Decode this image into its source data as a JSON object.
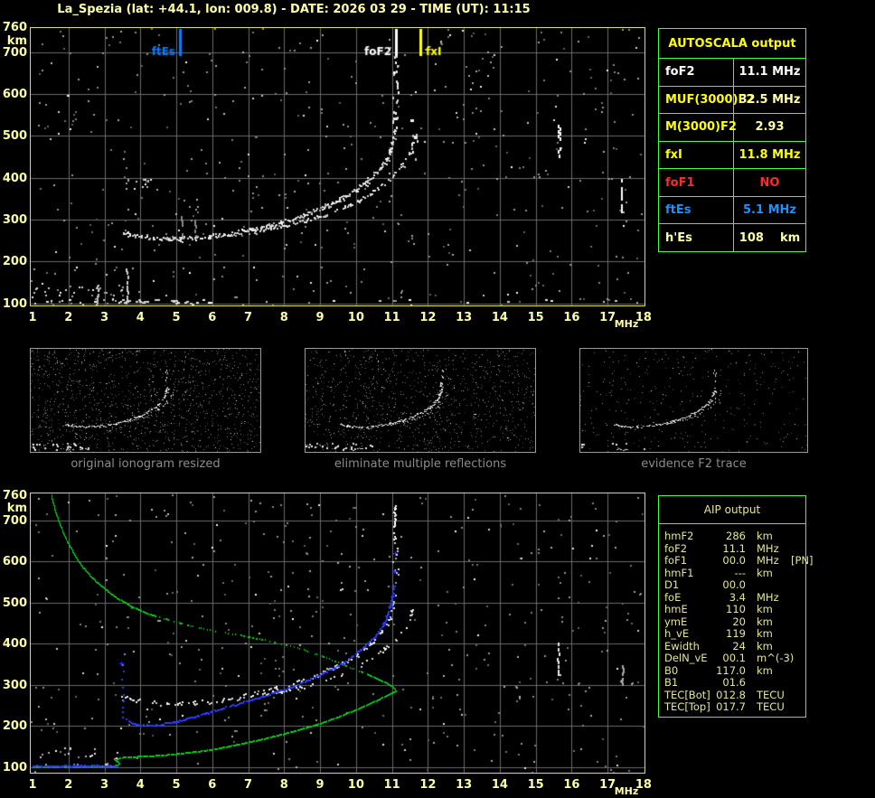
{
  "window": {
    "title": "La_Spezia (lat: +44.1, lon: 009.8) - DATE: 2026 03 29 - TIME (UT): 11:15"
  },
  "colors": {
    "background": "#000000",
    "plot_border": "#e6e600",
    "grid": "#6a6a6a",
    "axis_label": "#ffffa6",
    "table_border": "#40ff40",
    "caption_gray": "#8c8c8c",
    "white": "#ffffff",
    "pale_yellow": "#ffffa8",
    "yellow": "#ffff00",
    "red": "#ff2a2a",
    "marker_blue": "#0a7cff",
    "blue_trace": "#2b3cff",
    "green_profile": "#00d414",
    "aip_text": "#e6e696"
  },
  "axes": {
    "x_ticks": [
      1,
      2,
      3,
      4,
      5,
      6,
      7,
      8,
      9,
      10,
      11,
      12,
      13,
      14,
      15,
      16,
      17,
      18
    ],
    "x_unit": "MHz",
    "y_ticks": [
      760,
      700,
      600,
      500,
      400,
      300,
      200,
      100
    ],
    "y_unit": "km"
  },
  "top_plot": {
    "markers": [
      {
        "label": "ftEs",
        "freq": 5.1,
        "color": "#0a7cff",
        "side": "left"
      },
      {
        "label": "foF2",
        "freq": 11.1,
        "color": "#ffffff",
        "side": "left"
      },
      {
        "label": "fxI",
        "freq": 11.8,
        "color": "#ffff00",
        "side": "right"
      }
    ]
  },
  "thumbnails": [
    {
      "caption": "original ionogram resized"
    },
    {
      "caption": "eliminate multiple reflections"
    },
    {
      "caption": "evidence F2 trace"
    }
  ],
  "autoscala": {
    "title": "AUTOSCALA output",
    "rows": [
      {
        "label": "foF2",
        "value": "11.1 MHz",
        "label_color": "white",
        "value_color": "white"
      },
      {
        "label": "MUF(3000)F2",
        "value": "32.5 MHz",
        "label_color": "yellow",
        "value_color": "pale"
      },
      {
        "label": "M(3000)F2",
        "value": "2.93",
        "label_color": "yellow",
        "value_color": "pale"
      },
      {
        "label": "fxI",
        "value": "11.8 MHz",
        "label_color": "yellow",
        "value_color": "yellow"
      },
      {
        "label": "foF1",
        "value": "NO",
        "label_color": "red",
        "value_color": "red"
      },
      {
        "label": "ftEs",
        "value": "5.1 MHz",
        "label_color": "blue",
        "value_color": "blue"
      },
      {
        "label": "h'Es",
        "value": "108    km",
        "label_color": "pale",
        "value_color": "pale"
      }
    ]
  },
  "aip": {
    "title": "AIP output",
    "rows": [
      {
        "label": "hmF2",
        "value": "286",
        "unit": "km",
        "note": ""
      },
      {
        "label": "foF2",
        "value": "11.1",
        "unit": "MHz",
        "note": ""
      },
      {
        "label": "foF1",
        "value": "00.0",
        "unit": "MHz",
        "note": "[PN]"
      },
      {
        "label": "hmF1",
        "value": "---",
        "unit": "km",
        "note": ""
      },
      {
        "label": "D1",
        "value": "00.0",
        "unit": "",
        "note": ""
      },
      {
        "label": "foE",
        "value": "3.4",
        "unit": "MHz",
        "note": ""
      },
      {
        "label": "hmE",
        "value": "110",
        "unit": "km",
        "note": ""
      },
      {
        "label": "ymE",
        "value": "20",
        "unit": "km",
        "note": ""
      },
      {
        "label": "h_vE",
        "value": "119",
        "unit": "km",
        "note": ""
      },
      {
        "label": "Ewidth",
        "value": "24",
        "unit": "km",
        "note": ""
      },
      {
        "label": "DelN_vE",
        "value": "00.1",
        "unit": "m^(-3)",
        "note": ""
      },
      {
        "label": "B0",
        "value": "117.0",
        "unit": "km",
        "note": ""
      },
      {
        "label": "B1",
        "value": "01.6",
        "unit": "",
        "note": ""
      },
      {
        "label": "TEC[Bot]",
        "value": "012.8",
        "unit": "TECU",
        "note": ""
      },
      {
        "label": "TEC[Top]",
        "value": "017.7",
        "unit": "TECU",
        "note": ""
      }
    ]
  },
  "chart_data": {
    "type": "scatter",
    "title": "ionogram: virtual height vs frequency",
    "xlabel": "MHz",
    "ylabel": "km",
    "x_range": [
      1,
      18
    ],
    "y_range": [
      100,
      760
    ],
    "grid": "on",
    "top_ionogram": {
      "o_trace": [
        [
          3.45,
          272
        ],
        [
          3.7,
          266
        ],
        [
          4.0,
          261
        ],
        [
          4.35,
          258
        ],
        [
          4.7,
          256
        ],
        [
          5.1,
          256
        ],
        [
          5.5,
          258
        ],
        [
          5.9,
          261
        ],
        [
          6.3,
          265
        ],
        [
          6.7,
          271
        ],
        [
          7.1,
          278
        ],
        [
          7.5,
          286
        ],
        [
          7.9,
          295
        ],
        [
          8.3,
          306
        ],
        [
          8.7,
          318
        ],
        [
          9.1,
          332
        ],
        [
          9.5,
          349
        ],
        [
          9.9,
          369
        ],
        [
          10.2,
          388
        ],
        [
          10.5,
          410
        ],
        [
          10.7,
          428
        ],
        [
          10.85,
          448
        ],
        [
          10.95,
          468
        ],
        [
          11.02,
          492
        ],
        [
          11.07,
          518
        ]
      ],
      "x_trace": [
        [
          7.1,
          272
        ],
        [
          7.6,
          279
        ],
        [
          8.1,
          288
        ],
        [
          8.6,
          299
        ],
        [
          9.1,
          312
        ],
        [
          9.6,
          328
        ],
        [
          10.0,
          344
        ],
        [
          10.4,
          364
        ],
        [
          10.8,
          390
        ],
        [
          11.1,
          414
        ],
        [
          11.3,
          436
        ],
        [
          11.45,
          458
        ],
        [
          11.55,
          482
        ],
        [
          11.62,
          505
        ]
      ],
      "o_asymptote": {
        "f": [
          11.0,
          11.16
        ],
        "km": [
          520,
          695
        ],
        "n": 26
      },
      "x_asymptote": {
        "f": [
          11.5,
          11.68
        ],
        "km": [
          440,
          560
        ],
        "n": 10
      },
      "es_trace": {
        "f": [
          3.35,
          5.35
        ],
        "km": 108
      },
      "es_scatter": {
        "f": [
          1.0,
          3.5
        ],
        "km": [
          100,
          148
        ],
        "n": 42
      },
      "second_hop": {
        "f": [
          3.5,
          4.4
        ],
        "km": [
          368,
          400
        ],
        "n": 14
      },
      "streaks": [
        {
          "f": 3.62,
          "km": [
            100,
            185
          ],
          "c": "#cccccc"
        },
        {
          "f": 2.78,
          "km": [
            100,
            150
          ],
          "c": "#bbbbbb"
        },
        {
          "f": 15.65,
          "km": [
            455,
            540
          ],
          "c": "#ffffff"
        },
        {
          "f": 17.37,
          "km": [
            325,
            400
          ],
          "c": "#ffffff"
        },
        {
          "f": 5.15,
          "km": [
            262,
            315
          ],
          "c": "#8a8a8a"
        },
        {
          "f": 5.5,
          "km": [
            258,
            300
          ],
          "c": "#8a8a8a"
        }
      ]
    },
    "bottom_ionogram": {
      "blue_e_trace": [
        [
          1.0,
          104
        ],
        [
          2.2,
          105
        ],
        [
          3.35,
          105
        ]
      ],
      "blue_vertical_scatter": {
        "f": 3.5,
        "km": [
          222,
          235,
          248,
          262,
          278,
          295,
          315,
          335
        ]
      },
      "blue_trace": [
        [
          3.6,
          216
        ],
        [
          3.8,
          208
        ],
        [
          4.0,
          204
        ],
        [
          4.3,
          203
        ],
        [
          4.6,
          206
        ],
        [
          5.0,
          213
        ],
        [
          5.4,
          222
        ],
        [
          5.8,
          232
        ],
        [
          6.2,
          243
        ],
        [
          6.6,
          253
        ],
        [
          7.0,
          263
        ],
        [
          7.4,
          274
        ],
        [
          7.8,
          285
        ],
        [
          8.2,
          297
        ],
        [
          8.6,
          311
        ],
        [
          9.0,
          326
        ],
        [
          9.4,
          344
        ],
        [
          9.8,
          366
        ],
        [
          10.1,
          386
        ],
        [
          10.4,
          408
        ],
        [
          10.6,
          428
        ],
        [
          10.75,
          448
        ],
        [
          10.85,
          468
        ],
        [
          10.93,
          490
        ],
        [
          11.0,
          515
        ],
        [
          11.04,
          540
        ]
      ],
      "blue_isolated": [
        [
          11.06,
          576
        ],
        [
          11.08,
          620
        ],
        [
          3.47,
          352
        ]
      ],
      "green_flat": [
        [
          1.0,
          102
        ],
        [
          2.0,
          103
        ],
        [
          3.1,
          104
        ],
        [
          3.35,
          106
        ]
      ],
      "green_step": [
        [
          3.4,
          108
        ],
        [
          3.42,
          112
        ],
        [
          3.35,
          116
        ],
        [
          3.3,
          119
        ],
        [
          3.36,
          122
        ],
        [
          3.45,
          125
        ]
      ],
      "green_bottomside": [
        [
          3.6,
          126
        ],
        [
          4.0,
          128
        ],
        [
          4.5,
          130
        ],
        [
          4.9,
          133
        ],
        [
          5.3,
          137
        ],
        [
          5.8,
          142
        ],
        [
          6.2,
          148
        ],
        [
          6.6,
          155
        ],
        [
          7.0,
          162
        ],
        [
          7.4,
          170
        ],
        [
          7.9,
          181
        ],
        [
          8.3,
          190
        ],
        [
          8.7,
          200
        ],
        [
          9.1,
          211
        ],
        [
          9.5,
          224
        ],
        [
          9.9,
          238
        ],
        [
          10.3,
          253
        ],
        [
          10.6,
          265
        ],
        [
          10.8,
          274
        ],
        [
          10.95,
          281
        ],
        [
          11.05,
          285
        ],
        [
          11.1,
          287
        ]
      ],
      "green_topside": [
        [
          11.08,
          292
        ],
        [
          11.0,
          298
        ],
        [
          10.8,
          308
        ],
        [
          10.5,
          320
        ],
        [
          10.1,
          335
        ],
        [
          9.6,
          352
        ],
        [
          9.1,
          370
        ],
        [
          8.6,
          385
        ],
        [
          8.1,
          398
        ],
        [
          7.6,
          408
        ],
        [
          7.1,
          417
        ],
        [
          6.6,
          425
        ],
        [
          6.1,
          432
        ],
        [
          5.6,
          441
        ],
        [
          5.1,
          452
        ],
        [
          4.6,
          464
        ],
        [
          4.2,
          475
        ],
        [
          3.8,
          490
        ],
        [
          3.4,
          510
        ],
        [
          3.0,
          535
        ],
        [
          2.7,
          558
        ],
        [
          2.45,
          582
        ],
        [
          2.25,
          605
        ],
        [
          2.1,
          628
        ],
        [
          1.95,
          652
        ],
        [
          1.83,
          676
        ],
        [
          1.72,
          700
        ],
        [
          1.63,
          724
        ],
        [
          1.56,
          746
        ],
        [
          1.52,
          762
        ]
      ],
      "green_dotted_topside_range": [
        4.4,
        10.3
      ],
      "white_asymptote_streak": {
        "f": 11.06,
        "km": [
          655,
          737
        ]
      },
      "white_asymptote_scatter": {
        "f": [
          11.0,
          11.2
        ],
        "km": [
          560,
          650
        ],
        "n": 9
      },
      "streaks": [
        {
          "f": 15.62,
          "km": [
            330,
            402
          ],
          "c": "#e8e8e8"
        },
        {
          "f": 17.4,
          "km": [
            300,
            350
          ],
          "c": "#aaaaaa"
        }
      ]
    }
  }
}
